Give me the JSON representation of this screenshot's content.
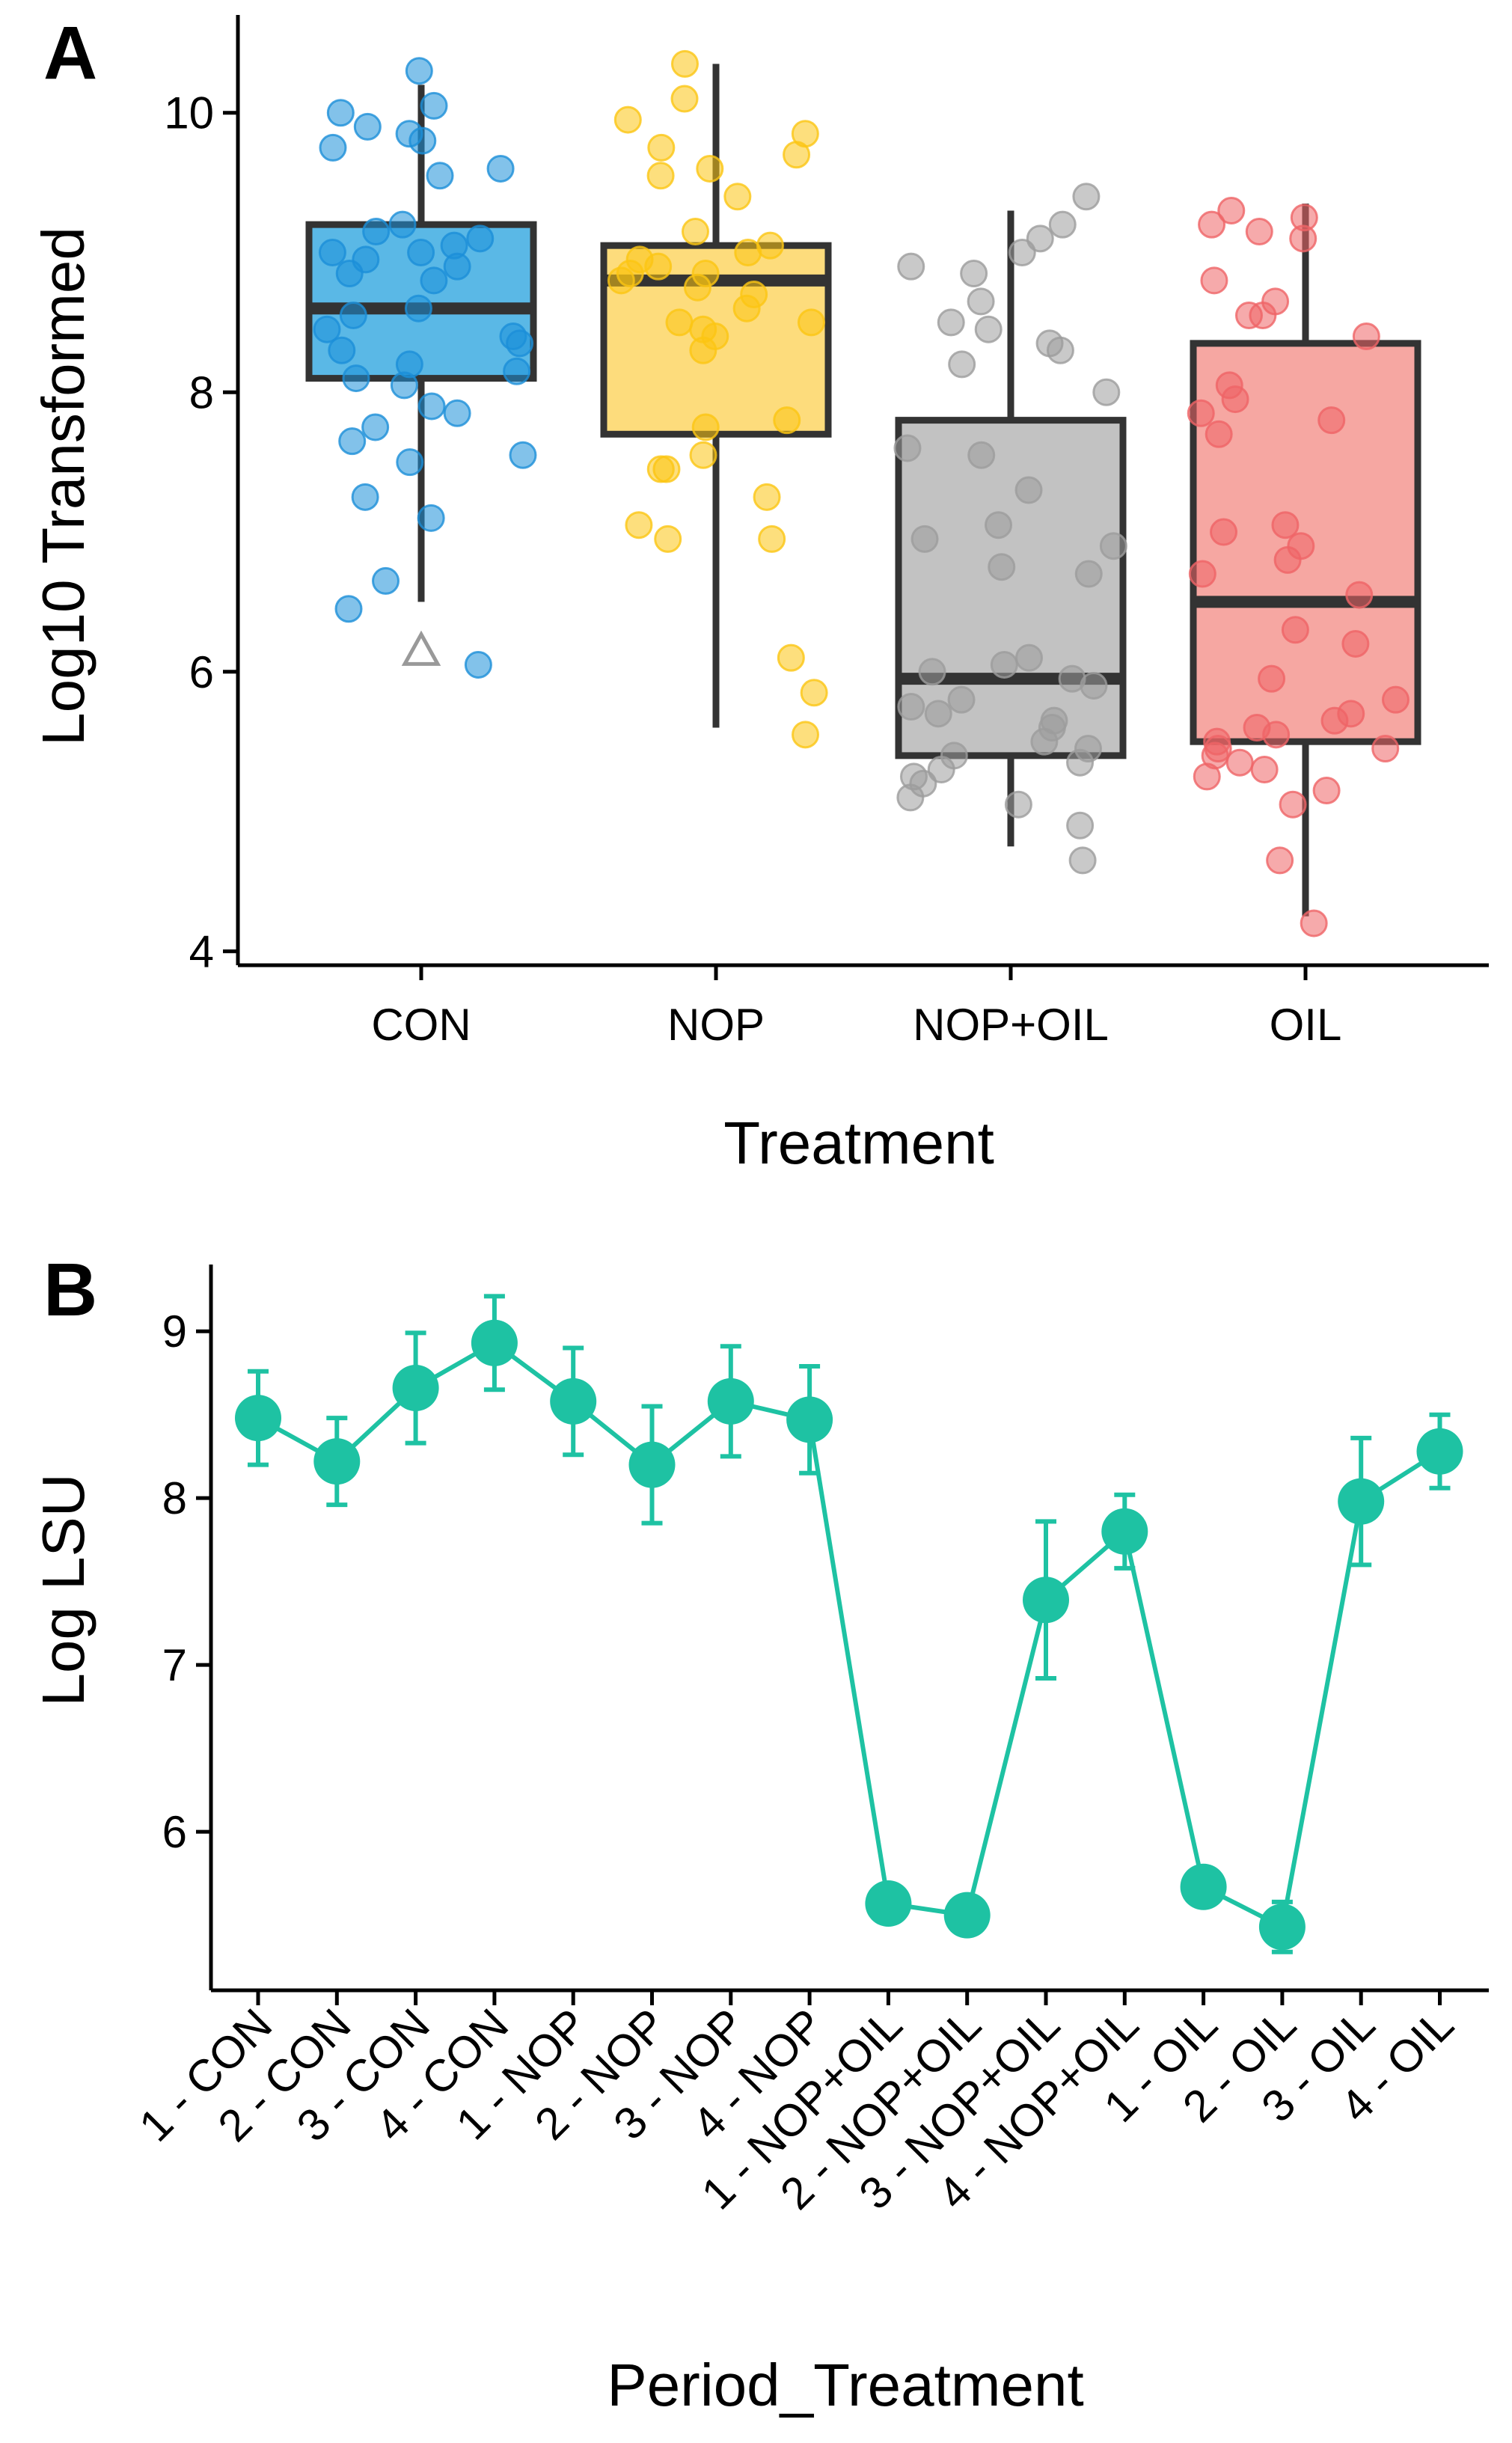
{
  "chart_data": [
    {
      "panel": "A",
      "type": "box",
      "xlabel": "Treatment",
      "ylabel": "Log10 Transformed",
      "ylim": [
        3.9,
        10.7
      ],
      "yticks": [
        4,
        6,
        8,
        10
      ],
      "categories": [
        "CON",
        "NOP",
        "NOP+OIL",
        "OIL"
      ],
      "colors": [
        "#1b8fd8",
        "#fbc513",
        "#9c9c9c",
        "#ef6466"
      ],
      "box_colors": [
        "#5ab8e6",
        "#fddc7c",
        "#c2c2c2",
        "#f6a7a2"
      ],
      "boxes": [
        {
          "name": "CON",
          "min": 6.5,
          "q1": 8.1,
          "median": 8.6,
          "q3": 9.2,
          "max": 10.2
        },
        {
          "name": "NOP",
          "min": 5.6,
          "q1": 7.7,
          "median": 8.8,
          "q3": 9.05,
          "max": 10.35
        },
        {
          "name": "NOP+OIL",
          "min": 4.75,
          "q1": 5.4,
          "median": 5.95,
          "q3": 7.8,
          "max": 9.3
        },
        {
          "name": "OIL",
          "min": 4.25,
          "q1": 5.5,
          "median": 6.5,
          "q3": 8.35,
          "max": 9.35
        }
      ],
      "outliers": [
        {
          "category": "CON",
          "value": 6.15,
          "shape": "triangle"
        }
      ],
      "points": [
        [
          10.3,
          10.05,
          10.0,
          9.9,
          9.85,
          9.8,
          9.75,
          9.6,
          9.55,
          9.2,
          9.15,
          9.1,
          9.05,
          9.0,
          9.0,
          8.95,
          8.9,
          8.85,
          8.8,
          8.6,
          8.55,
          8.45,
          8.4,
          8.35,
          8.3,
          8.2,
          8.15,
          8.1,
          8.05,
          7.9,
          7.85,
          7.75,
          7.65,
          7.55,
          7.5,
          7.25,
          7.1,
          6.65,
          6.45,
          6.05
        ],
        [
          10.35,
          10.1,
          9.95,
          9.85,
          9.75,
          9.7,
          9.6,
          9.55,
          9.4,
          9.15,
          9.05,
          9.0,
          8.95,
          8.9,
          8.85,
          8.85,
          8.8,
          8.75,
          8.7,
          8.6,
          8.5,
          8.5,
          8.45,
          8.4,
          8.3,
          7.8,
          7.75,
          7.55,
          7.45,
          7.45,
          7.25,
          7.05,
          6.95,
          6.95,
          6.1,
          5.85,
          5.55
        ],
        [
          9.4,
          9.2,
          9.1,
          9.0,
          8.9,
          8.85,
          8.65,
          8.5,
          8.45,
          8.35,
          8.3,
          8.2,
          8.0,
          7.6,
          7.55,
          7.3,
          7.05,
          6.95,
          6.9,
          6.75,
          6.7,
          6.1,
          6.05,
          6.0,
          5.95,
          5.9,
          5.8,
          5.75,
          5.7,
          5.65,
          5.6,
          5.5,
          5.45,
          5.4,
          5.35,
          5.3,
          5.25,
          5.2,
          5.1,
          5.05,
          4.9,
          4.65
        ],
        [
          9.3,
          9.25,
          9.2,
          9.15,
          9.1,
          8.8,
          8.65,
          8.55,
          8.55,
          8.4,
          8.05,
          7.95,
          7.85,
          7.8,
          7.7,
          7.05,
          7.0,
          6.9,
          6.8,
          6.7,
          6.55,
          6.3,
          6.2,
          5.95,
          5.8,
          5.7,
          5.65,
          5.6,
          5.55,
          5.5,
          5.45,
          5.45,
          5.4,
          5.35,
          5.3,
          5.25,
          5.15,
          5.05,
          4.65,
          4.2
        ]
      ]
    },
    {
      "panel": "B",
      "type": "line",
      "xlabel": "Period_Treatment",
      "ylabel": "Log LSU",
      "ylim": [
        5.05,
        9.4
      ],
      "yticks": [
        6,
        7,
        8,
        9
      ],
      "color": "#1ec2a3",
      "categories": [
        "1 - CON",
        "2 - CON",
        "3 - CON",
        "4 - CON",
        "1 - NOP",
        "2 - NOP",
        "3 - NOP",
        "4 - NOP",
        "1 - NOP+OIL",
        "2 - NOP+OIL",
        "3 - NOP+OIL",
        "4 - NOP+OIL",
        "1 - OIL",
        "2 - OIL",
        "3 - OIL",
        "4 - OIL"
      ],
      "values": [
        8.48,
        8.22,
        8.66,
        8.93,
        8.58,
        8.2,
        8.58,
        8.47,
        5.57,
        5.5,
        7.39,
        7.8,
        5.67,
        5.43,
        7.98,
        8.28
      ],
      "errors": [
        0.28,
        0.26,
        0.33,
        0.28,
        0.32,
        0.35,
        0.33,
        0.32,
        0.08,
        0.07,
        0.47,
        0.22,
        0.08,
        0.15,
        0.38,
        0.22
      ]
    }
  ]
}
